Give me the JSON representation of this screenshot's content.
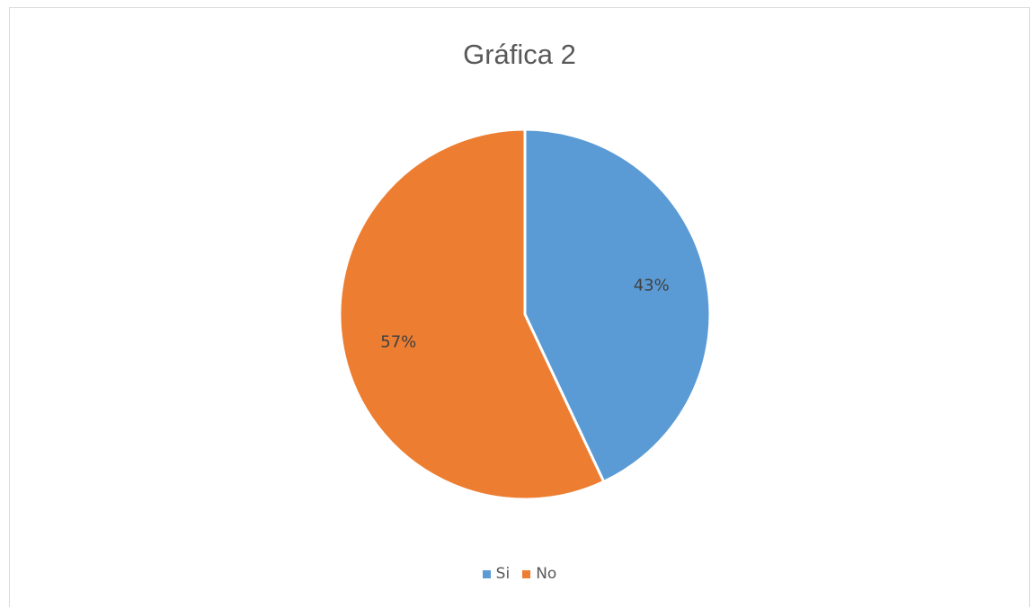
{
  "chart_data": {
    "type": "pie",
    "title": "Gráfica 2",
    "categories": [
      "Si",
      "No"
    ],
    "values": [
      43,
      57
    ],
    "labels": [
      "43%",
      "57%"
    ],
    "colors": [
      "#5b9bd5",
      "#ed7d31"
    ],
    "legend_position": "bottom"
  }
}
